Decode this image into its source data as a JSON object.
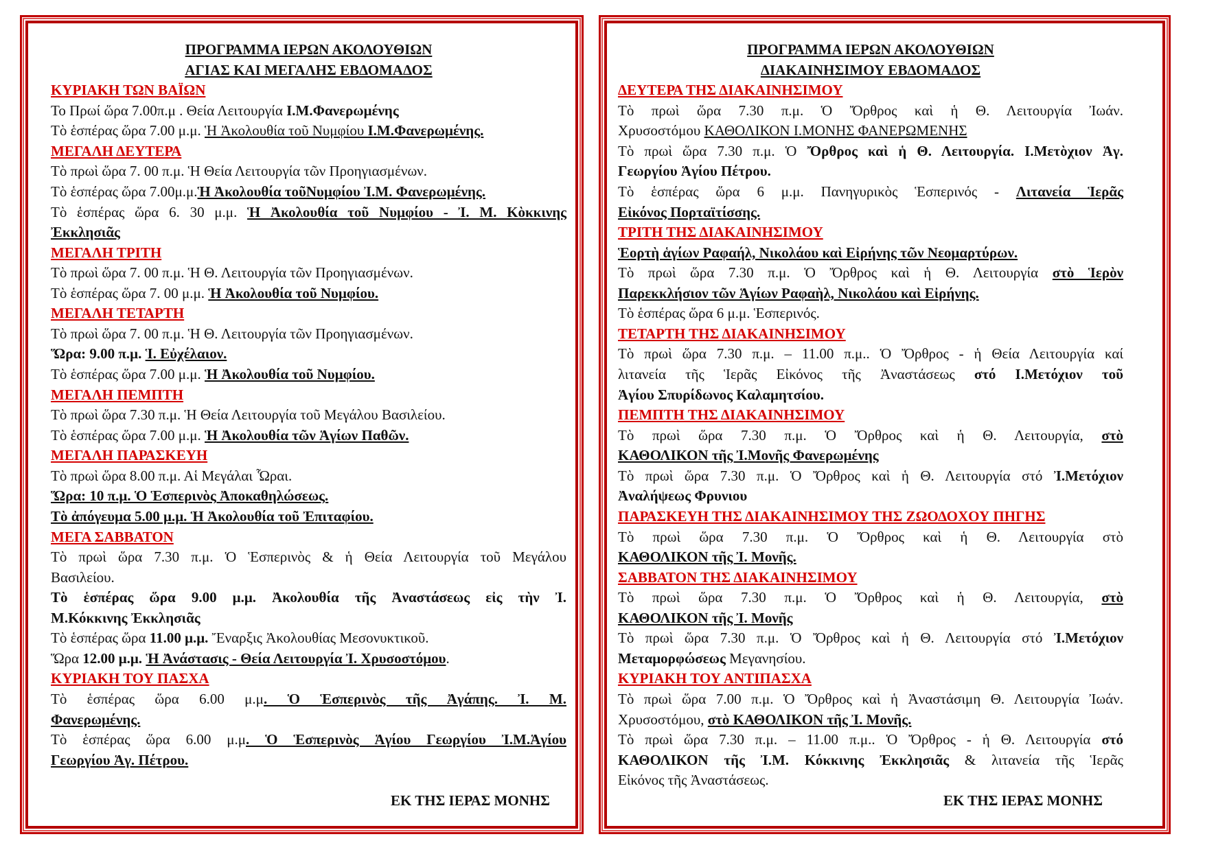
{
  "panels": [
    {
      "title_lines": [
        "ΠΡΟΓΡΑΜΜΑ  ΙΕΡΩΝ  ΑΚΟΛΟΥΘΙΩΝ",
        "ΑΓΙΑΣ  ΚΑΙ ΜΕΓΑΛΗΣ  ΕΒΔΟΜΑΔΟΣ"
      ],
      "sections": [
        {
          "heading": "ΚΥΡΙΑΚΗ ΤΩΝ ΒΑΪΩΝ",
          "paragraphs": [
            [
              [
                [
                  "Το Πρωί ὥρα 7.00π.μ . Θεία Λειτουργία ",
                  ""
                ],
                [
                  "Ι.Μ.Φανερωμένης",
                  "b"
                ]
              ]
            ],
            [
              [
                [
                  "Τὸ ἑσπέρας ὥρα 7.00 μ.μ. ",
                  ""
                ],
                [
                  "Ἡ Ἀκολουθία τοῦ Νυμφίου  ",
                  "u"
                ],
                [
                  "Ι.Μ.Φανερωμένης.",
                  "bu"
                ]
              ]
            ]
          ]
        },
        {
          "heading": "ΜΕΓΑΛΗ ΔΕΥΤΕΡΑ",
          "paragraphs": [
            [
              [
                [
                  "Τὸ πρωὶ ὥρα    7. 00 π.μ. Ἡ Θεία Λειτουργία τῶν Προηγιασμένων.",
                  ""
                ]
              ]
            ],
            [
              [
                [
                  "Τὸ ἑσπέρας ὥρα 7.00μ.μ.",
                  ""
                ],
                [
                  "Ἡ Ἀκολουθία τοῦΝυμφίου Ἰ.Μ. Φανερωμένης.",
                  "bu"
                ]
              ]
            ],
            [
              [
                [
                  "Τὸ ἑσπέρας ὥρα 6. 30 μ.μ. ",
                  ""
                ],
                [
                  "Ἡ Ἀκολουθία τοῦ Νυμφίου - Ἰ. Μ. Κὸκκινης",
                  "bu"
                ]
              ],
              [
                [
                  "Ἐκκλησιᾶς",
                  "bu"
                ]
              ]
            ]
          ]
        },
        {
          "heading": "ΜΕΓΑΛΗ ΤΡΙΤΗ",
          "paragraphs": [
            [
              [
                [
                  "Τὸ πρωὶ ὥρα       7. 00 π.μ. Ἡ Θ. Λειτουργία τῶν Προηγιασμένων.",
                  ""
                ]
              ]
            ],
            [
              [
                [
                  "Τὸ ἑσπέρας ὥρα 7. 00 μ.μ. ",
                  ""
                ],
                [
                  "Ἡ Ἀκολουθία τοῦ Νυμφίου.",
                  "bu"
                ]
              ]
            ]
          ]
        },
        {
          "heading": "ΜΕΓΑΛΗ ΤΕΤΑΡΤΗ",
          "paragraphs": [
            [
              [
                [
                  "Τὸ πρωὶ ὥρα   7. 00 π.μ. Ἡ  Θ. Λειτουργία τῶν Προηγιασμένων.",
                  ""
                ]
              ]
            ],
            [
              [
                [
                  "Ὥρα: 9.00 π.μ. ",
                  "b"
                ],
                [
                  "Ἱ. Εὐχέλαιον.",
                  "bu"
                ]
              ]
            ],
            [
              [
                [
                  "Τὸ ἑσπέρας ὥρα 7.00 μ.μ. ",
                  ""
                ],
                [
                  "Ἡ  Ἀκολουθία τοῦ Νυμφίου.",
                  "bu"
                ]
              ]
            ]
          ]
        },
        {
          "heading": "ΜΕΓΑΛΗ ΠΕΜΠΤΗ",
          "paragraphs": [
            [
              [
                [
                  "Τὸ πρωὶ ὥρα       7.30 π.μ. Ἡ Θεία Λειτουργία τοῦ Μεγάλου Βασιλείου.",
                  ""
                ]
              ]
            ],
            [
              [
                [
                  "Τὸ ἑσπέρας ὥρα 7.00 μ.μ. ",
                  ""
                ],
                [
                  "Ἡ Ἀκολουθία τῶν Ἁγίων Παθῶν.",
                  "bu"
                ]
              ]
            ]
          ]
        },
        {
          "heading": "ΜΕΓΑΛΗ ΠΑΡΑΣΚΕΥΗ",
          "paragraphs": [
            [
              [
                [
                  "Τὸ πρωὶ ὥρα    8.00 π.μ.  Αἱ Μεγάλαι Ὧραι.",
                  ""
                ]
              ]
            ],
            [
              [
                [
                  "Ὥρα: 10 π.μ. Ὁ Ἑσπερινὸς  Ἀποκαθηλώσεως.",
                  "bu"
                ]
              ]
            ],
            [
              [
                [
                  "Τὸ ἀπόγευμα     5.00  μ.μ. Ἡ Ἀκολουθία τοῦ Ἐπιταφίου.",
                  "bu"
                ]
              ]
            ]
          ]
        },
        {
          "heading": "ΜΕΓΑ ΣΑΒΒΑΤΟΝ",
          "paragraphs": [
            [
              [
                [
                  "Τὸ πρωὶ ὥρα    7.30 π.μ. Ὁ Ἑσπερινὸς & ἡ Θεία Λειτουργία τοῦ Μεγάλου",
                  ""
                ]
              ],
              [
                [
                  "Βασιλείου.",
                  ""
                ]
              ]
            ],
            [
              [
                [
                  "Τὸ ἑσπέρας ὥρα 9.00 μ.μ. Ἀκολουθία τῆς Ἀναστάσεως  εἰς τὴν Ἰ.",
                  "b"
                ]
              ],
              [
                [
                  "Μ.Κόκκινης Ἐκκλησιᾶς",
                  "b"
                ]
              ]
            ],
            [
              [
                [
                  "Τὸ ἑσπέρας ὥρα ",
                  ""
                ],
                [
                  "11.00 μ.μ.",
                  "b"
                ],
                [
                  " Ἔναρξις Ἀκολουθίας Μεσονυκτικοῦ.",
                  ""
                ]
              ]
            ],
            [
              [
                [
                  "Ὥρα  ",
                  ""
                ],
                [
                  "12.00 μ.μ. ",
                  "b"
                ],
                [
                  "Ἡ Ἀνάστασις -  Θεία  Λειτουργία Ἰ. Χρυσοστόμου",
                  "bu"
                ],
                [
                  ".",
                  ""
                ]
              ]
            ]
          ]
        },
        {
          "heading": "ΚΥΡΙΑΚΗ ΤΟΥ ΠΑΣΧΑ",
          "paragraphs": [
            [
              [
                [
                  "Τὸ ἑσπέρας ὥρα 6.00 μ.μ",
                  ""
                ],
                [
                  ". Ὁ Ἑσπερινὸς τῆς Ἀγάπης. Ἰ. Μ.",
                  "bu"
                ]
              ],
              [
                [
                  "Φανερωμένης.",
                  "bu"
                ]
              ]
            ],
            [
              [
                [
                  "Τὸ ἑσπέρας ὥρα 6.00 μ.μ",
                  ""
                ],
                [
                  ". Ὁ Ἑσπερινὸς Ἁγίου Γεωργίου Ἰ.Μ.Ἁγίου",
                  "bu"
                ]
              ],
              [
                [
                  "Γεωργίου Ἁγ. Πέτρου.",
                  "bu"
                ]
              ]
            ]
          ]
        }
      ],
      "footer": "ΕΚ ΤΗΣ ΙΕΡΑΣ ΜΟΝΗΣ"
    },
    {
      "title_lines": [
        "ΠΡΟΓΡΑΜΜΑ ΙΕΡΩΝ ΑΚΟΛΟΥΘΙΩΝ",
        "ΔΙΑΚΑΙΝΗΣΙΜΟΥ ΕΒΔΟΜΑΔΟΣ"
      ],
      "sections": [
        {
          "heading": "ΔΕΥΤΕΡΑ ΤΗΣ ΔΙΑΚΑΙΝΗΣΙΜΟΥ",
          "paragraphs": [
            [
              [
                [
                  "Τὸ πρωὶ ὥρα 7.30 π.μ. Ὁ Ὄρθρος καὶ ἡ  Θ. Λειτουργία Ἰωάν.",
                  ""
                ]
              ],
              [
                [
                  "Χρυσοστόμου ",
                  ""
                ],
                [
                  "ΚΑΘΟΛΙΚΟΝ Ι.ΜΟΝΗΣ ΦΑΝΕΡΩΜΕΝΗΣ",
                  "u"
                ]
              ]
            ],
            [
              [
                [
                  "Τὸ πρωὶ ὥρα 7.30 π.μ. Ὁ ",
                  ""
                ],
                [
                  "Ὄρθρος καὶ ἡ  Θ. Λειτουργία. Ι.Μετὸχιον Ἁγ.",
                  "b"
                ]
              ],
              [
                [
                  "Γεωργίου Ἁγίου Πέτρου.",
                  "b"
                ]
              ]
            ],
            [
              [
                [
                  "Τὸ ἑσπέρας ὥρα 6 μ.μ. Πανηγυρικὸς Ἑσπερινός - ",
                  ""
                ],
                [
                  "Λιτανεία Ἱερᾶς",
                  "bu"
                ]
              ],
              [
                [
                  "Εἰκόνος Πορταϊτίσσης.",
                  "bu"
                ]
              ]
            ]
          ]
        },
        {
          "heading": "ΤΡΙΤΗ ΤΗΣ ΔΙΑΚΑΙΝΗΣΙΜΟΥ",
          "paragraphs": [
            [
              [
                [
                  "Ἑορτὴ ἁγίων Ραφαήλ, Νικολάου καὶ Εἰρήνης τῶν Νεομαρτύρων.",
                  "bu"
                ]
              ]
            ],
            [
              [
                [
                  "Τὸ πρωὶ ὥρα 7.30 π.μ. Ὁ Ὄρθρος καὶ ἡ  Θ. Λειτουργία ",
                  ""
                ],
                [
                  "στὸ Ἱερὸν",
                  "bu"
                ]
              ],
              [
                [
                  "Παρεκκλήσιον τῶν Ἁγίων Ραφαὴλ, Νικολάου καὶ Εἰρήνης.",
                  "bu"
                ]
              ]
            ],
            [
              [
                [
                  "Τὸ ἑσπέρας ὥρα 6 μ.μ.  Ἑσπερινός.",
                  ""
                ]
              ]
            ]
          ]
        },
        {
          "heading": "ΤΕΤΑΡΤΗ ΤΗΣ ΔΙΑΚΑΙΝΗΣΙΜΟΥ",
          "paragraphs": [
            [
              [
                [
                  "Τὸ πρωὶ ὥρα 7.30 π.μ. – 11.00 π.μ.. Ὁ Ὄρθρος - ἡ  Θεία Λειτουργία καί",
                  ""
                ]
              ],
              [
                [
                  "λιτανεία  τῆς Ἱερᾶς Εἰκόνος τῆς Ἀναστάσεως  ",
                  ""
                ],
                [
                  "στό Ι.Μετόχιον τοῦ",
                  "b"
                ]
              ],
              [
                [
                  "Ἁγίου Σπυρίδωνος Καλαμητσίου.",
                  "b"
                ]
              ]
            ]
          ]
        },
        {
          "heading": "ΠΕΜΠΤΗ ΤΗΣ ΔΙΑΚΑΙΝΗΣΙΜΟΥ",
          "paragraphs": [
            [
              [
                [
                  "Τὸ πρωὶ ὥρα 7.30 π.μ. Ὁ Ὄρθρος καὶ ἡ Θ. Λειτουργία, ",
                  ""
                ],
                [
                  "στὸ",
                  "bu"
                ]
              ],
              [
                [
                  "ΚΑΘΟΛΙΚΟΝ τῆς Ἰ.Μονῆς Φανερωμένης",
                  "bu"
                ]
              ]
            ],
            [
              [
                [
                  "Τὸ πρωὶ ὥρα 7.30 π.μ. Ὁ Ὄρθρος καὶ ἡ  Θ. Λειτουργία στό ",
                  ""
                ],
                [
                  "Ἰ.Μετόχιον",
                  "b"
                ]
              ],
              [
                [
                  "Ἀναλήψεως Φρυνιου",
                  "b"
                ]
              ]
            ]
          ]
        },
        {
          "heading": "ΠΑΡΑΣΚΕΥΗ ΤΗΣ ΔΙΑΚΑΙΝΗΣΙΜΟΥ   ΤΗΣ  ΖΩΟΔΟΧΟΥ  ΠΗΓΗΣ",
          "paragraphs": [
            [
              [
                [
                  "Τὸ πρωὶ  ὥρα 7.30 π.μ. Ὁ Ὄρθρος καὶ ἡ  Θ. Λειτουργία στὸ",
                  ""
                ]
              ],
              [
                [
                  "ΚΑΘΟΛΙΚΟΝ τῆς Ἰ. Μονῆς.",
                  "bu"
                ]
              ]
            ]
          ]
        },
        {
          "heading": "ΣΑΒΒΑΤΟΝ ΤΗΣ ΔΙΑΚΑΙΝΗΣΙΜΟΥ",
          "paragraphs": [
            [
              [
                [
                  "Τὸ πρωὶ ὥρα 7.30 π.μ. Ὁ Ὄρθρος καὶ ἡ Θ. Λειτουργία, ",
                  ""
                ],
                [
                  "στὸ",
                  "bu"
                ]
              ],
              [
                [
                  "ΚΑΘΟΛΙΚΟΝ τῆς Ἰ. Μονῆς",
                  "bu"
                ]
              ]
            ],
            [
              [
                [
                  "Τὸ πρωὶ ὥρα 7.30 π.μ. Ὁ Ὄρθρος καὶ ἡ Θ. Λειτουργία στό ",
                  ""
                ],
                [
                  "Ἰ.Μετόχιον",
                  "b"
                ]
              ],
              [
                [
                  "Μεταμορφώσεως ",
                  "b"
                ],
                [
                  "Μεγανησίου.",
                  ""
                ]
              ]
            ]
          ]
        },
        {
          "heading": "ΚΥΡΙΑΚΗ ΤΟΥ ΑΝΤΙΠΑΣΧΑ",
          "paragraphs": [
            [
              [
                [
                  "Τὸ πρωὶ ὥρα 7.00 π.μ. Ὁ Ὄρθρος καὶ ἡ Ἀναστάσιμη Θ. Λειτουργία Ἰωάν.",
                  ""
                ]
              ],
              [
                [
                  "Χρυσοστόμου, ",
                  ""
                ],
                [
                  "στὸ ΚΑΘΟΛΙΚΟΝ τῆς Ἰ. Μονῆς.",
                  "bu"
                ]
              ]
            ],
            [
              [
                [
                  "Τὸ πρωὶ ὥρα  7.30 π.μ. – 11.00 π.μ.. Ὁ Ὄρθρος - ἡ  Θ. Λειτουργία ",
                  ""
                ],
                [
                  "στό",
                  "b"
                ]
              ],
              [
                [
                  "ΚΑΘΟΛΙΚΟΝ τῆς Ἰ.Μ. Κόκκινης Ἐκκλησιᾶς",
                  "b"
                ],
                [
                  " &  λιτανεία  τῆς Ἱερᾶς",
                  ""
                ]
              ],
              [
                [
                  "Εἰκόνος τῆς Ἀναστάσεως.",
                  ""
                ]
              ]
            ]
          ]
        }
      ],
      "footer": "ΕΚ ΤΗΣ ΙΕΡΑΣ ΜΟΝΗΣ"
    }
  ],
  "colors": {
    "frame": "#c00000",
    "heading": "#d40000",
    "text": "#111111"
  }
}
